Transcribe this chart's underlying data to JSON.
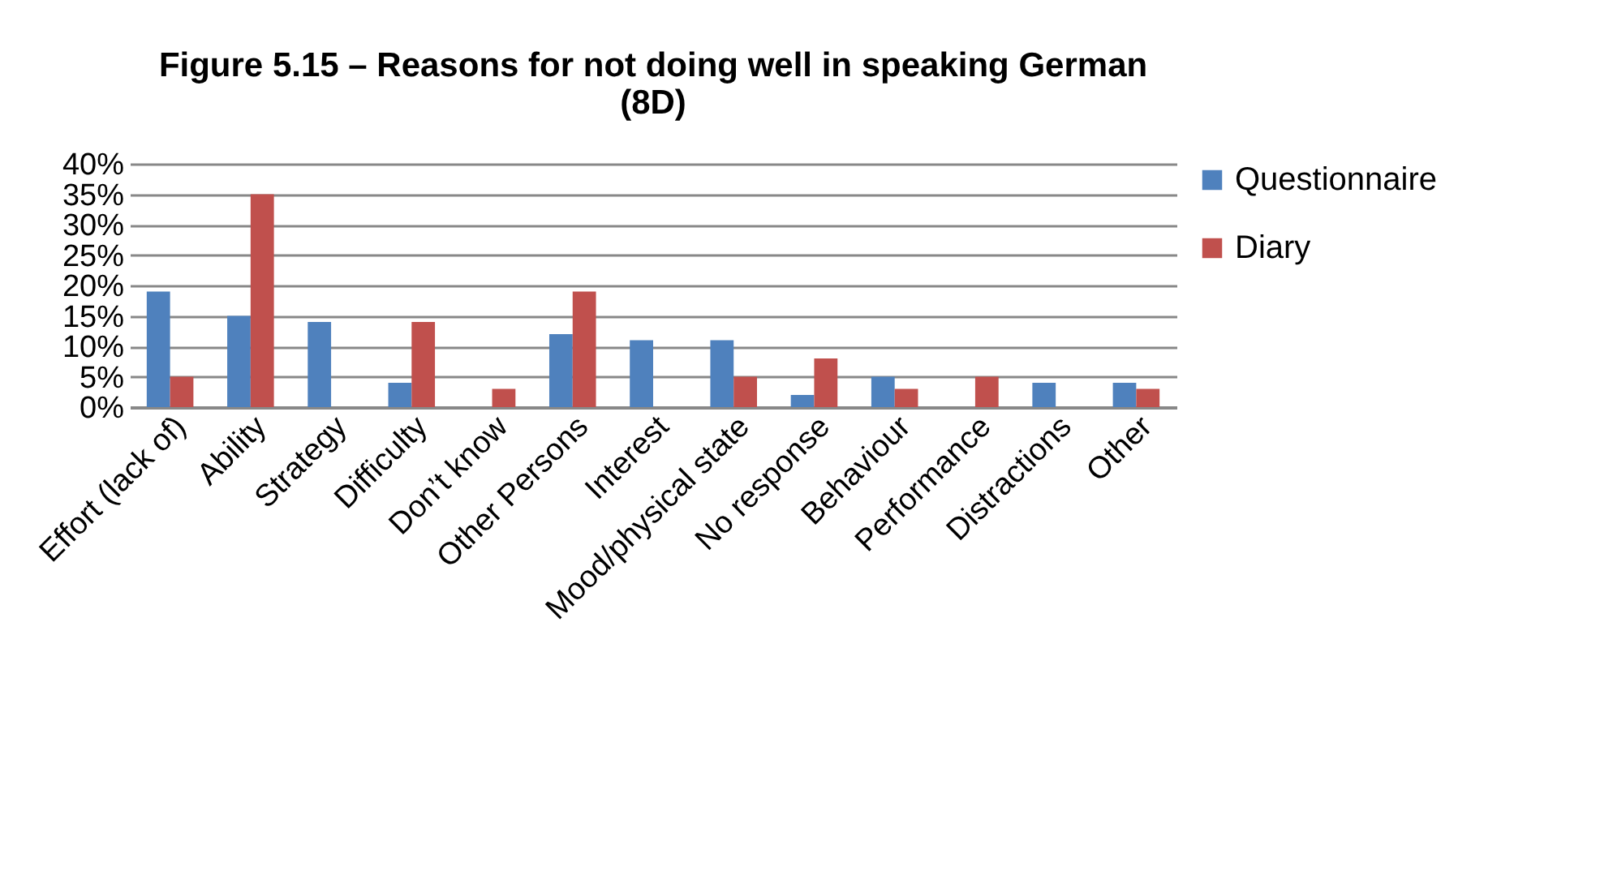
{
  "chart_data": {
    "type": "bar",
    "title": "Figure 5.15 – Reasons for not doing well in speaking German\n(8D)",
    "categories": [
      "Effort (lack of)",
      "Ability",
      "Strategy",
      "Difficulty",
      "Don’t know",
      "Other Persons",
      "Interest",
      "Mood/physical state",
      "No response",
      "Behaviour",
      "Performance",
      "Distractions",
      "Other"
    ],
    "series": [
      {
        "name": "Questionnaire",
        "color": "#4f81bd",
        "values": [
          19,
          15,
          14,
          4,
          null,
          12,
          11,
          11,
          2,
          5,
          null,
          4,
          4
        ]
      },
      {
        "name": "Diary",
        "color": "#c0504d",
        "values": [
          5,
          35,
          null,
          14,
          3,
          19,
          null,
          5,
          8,
          3,
          5,
          null,
          3
        ]
      }
    ],
    "ylim": [
      0,
      40
    ],
    "yticks": [
      {
        "value": 0,
        "label": "0%"
      },
      {
        "value": 5,
        "label": "5%"
      },
      {
        "value": 10,
        "label": "10%"
      },
      {
        "value": 15,
        "label": "15%"
      },
      {
        "value": 20,
        "label": "20%"
      },
      {
        "value": 25,
        "label": "25%"
      },
      {
        "value": 30,
        "label": "30%"
      },
      {
        "value": 35,
        "label": "35%"
      },
      {
        "value": 40,
        "label": "40%"
      }
    ],
    "grid": "y",
    "legend": "right"
  }
}
